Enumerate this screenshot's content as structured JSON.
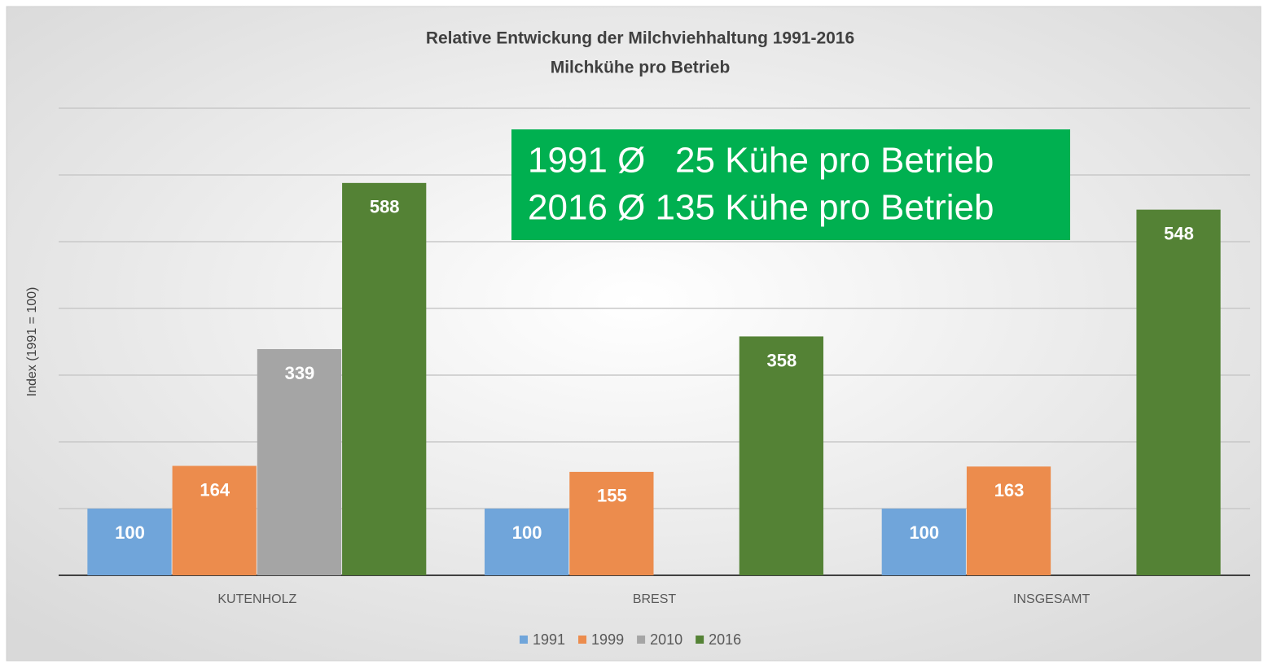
{
  "chart_data": {
    "type": "bar",
    "title": "Relative Entwickung der Milchviehhaltung 1991-2016",
    "subtitle": "Milchkühe pro Betrieb",
    "y_label": "Index (1991 = 100)",
    "annotation": [
      "1991 Ø   25 Kühe pro Betrieb",
      "2016 Ø 135 Kühe pro Betrieb"
    ],
    "categories": [
      "KUTENHOLZ",
      "BREST",
      "INSGESAMT"
    ],
    "series": [
      {
        "name": "1991",
        "color": "#70a5da",
        "values": [
          100,
          100,
          100
        ]
      },
      {
        "name": "1999",
        "color": "#ec8c4d",
        "values": [
          164,
          155,
          163
        ]
      },
      {
        "name": "2010",
        "color": "#a5a5a5",
        "values": [
          339,
          null,
          null
        ]
      },
      {
        "name": "2016",
        "color": "#548235",
        "values": [
          588,
          358,
          548
        ]
      }
    ],
    "ylim": [
      0,
      700
    ],
    "yticks": [
      0,
      100,
      200,
      300,
      400,
      500,
      600,
      700
    ],
    "grid": true,
    "legend": "bottom"
  }
}
